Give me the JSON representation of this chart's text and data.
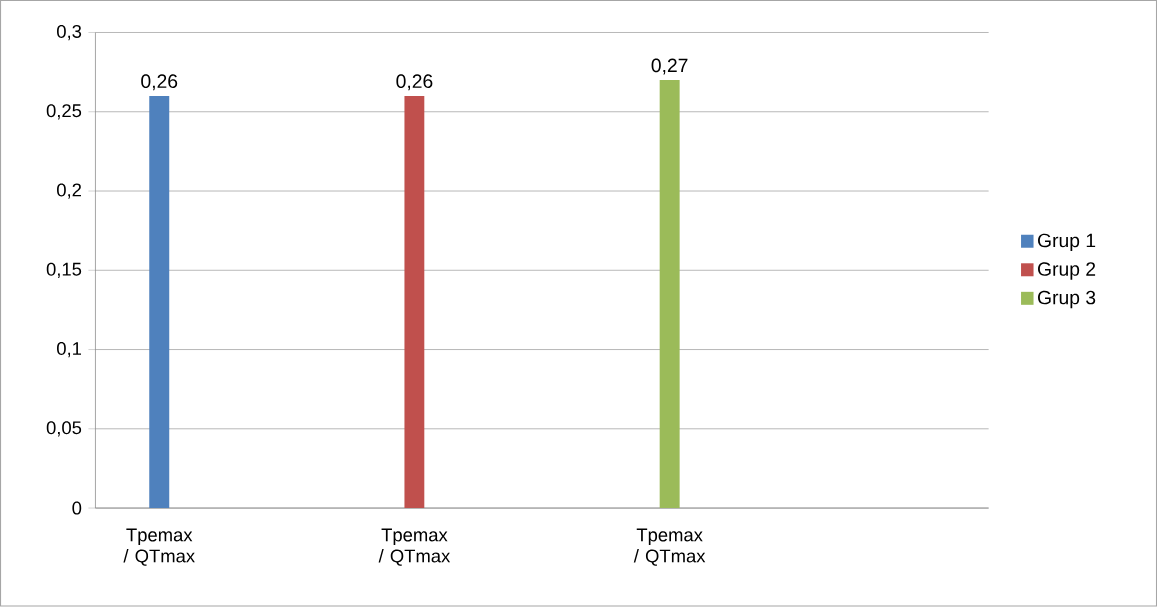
{
  "chart_data": {
    "type": "bar",
    "categories": [
      "Tpemax / QTmax",
      null,
      "Tpemax / QTmax",
      null,
      "Tpemax / QTmax",
      null,
      null
    ],
    "series": [
      {
        "name": "Grup 1",
        "color": "#4f81bd",
        "values": [
          0.26,
          null,
          null,
          null,
          null,
          null,
          null
        ],
        "value_labels": [
          "0,26",
          null,
          null,
          null,
          null,
          null,
          null
        ]
      },
      {
        "name": "Grup 2",
        "color": "#c0504d",
        "values": [
          null,
          null,
          0.26,
          null,
          null,
          null,
          null
        ],
        "value_labels": [
          null,
          null,
          "0,26",
          null,
          null,
          null,
          null
        ]
      },
      {
        "name": "Grup 3",
        "color": "#9bbb59",
        "values": [
          null,
          null,
          null,
          null,
          0.27,
          null,
          null
        ],
        "value_labels": [
          null,
          null,
          null,
          null,
          "0,27",
          null,
          null
        ]
      }
    ],
    "ylim": [
      0,
      0.3
    ],
    "yticks": [
      0,
      {
        "value": 0.05,
        "label": "0,05"
      },
      {
        "value": 0.1,
        "label": "0,1"
      },
      {
        "value": 0.15,
        "label": "0,15"
      },
      {
        "value": 0.2,
        "label": "0,2"
      },
      {
        "value": 0.25,
        "label": "0,25"
      },
      {
        "value": 0.3,
        "label": "0,3"
      }
    ],
    "grid": "y",
    "legend": "right"
  }
}
